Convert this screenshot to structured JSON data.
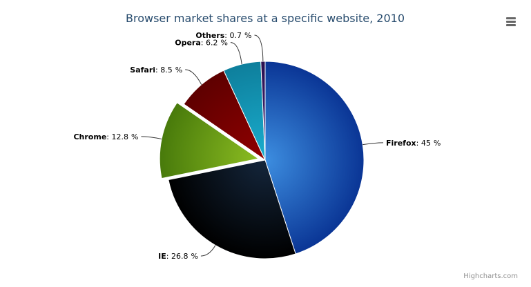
{
  "chart_data": {
    "type": "pie",
    "title": "Browser market shares at a specific website, 2010",
    "categories": [
      "Firefox",
      "IE",
      "Chrome",
      "Safari",
      "Opera",
      "Others"
    ],
    "values": [
      45,
      26.8,
      12.8,
      8.5,
      6.2,
      0.7
    ],
    "unit": "%",
    "sliced": [
      "Chrome"
    ],
    "colors": [
      [
        "#3d8ee0",
        "#0a3595"
      ],
      [
        "#14263c",
        "#000000"
      ],
      [
        "#8bbc21",
        "#487a0b"
      ],
      [
        "#910000",
        "#5e0000"
      ],
      [
        "#1aadce",
        "#0e7f9c"
      ],
      [
        "#4a2a78",
        "#2a1050"
      ]
    ]
  },
  "menu": {
    "icon": "menu-icon"
  },
  "credits": "Highcharts.com"
}
